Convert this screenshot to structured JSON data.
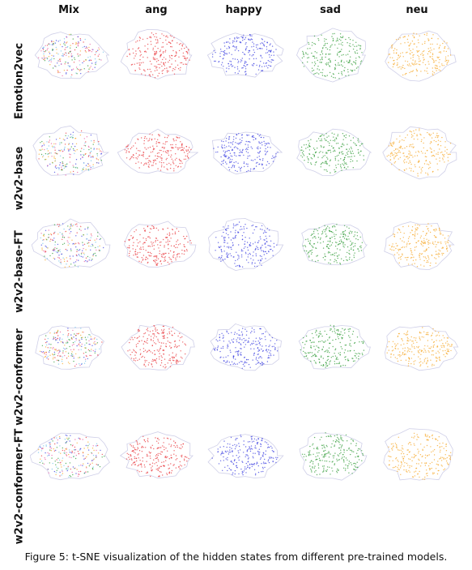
{
  "figure": {
    "columns": [
      {
        "label": "Mix",
        "color": "mix"
      },
      {
        "label": "ang",
        "color": "#e8343a"
      },
      {
        "label": "happy",
        "color": "#3b3fe0"
      },
      {
        "label": "sad",
        "color": "#2e9a34"
      },
      {
        "label": "neu",
        "color": "#f5a623"
      }
    ],
    "rows": [
      {
        "label": "Emotion2vec"
      },
      {
        "label": "w2v2-base"
      },
      {
        "label": "w2v2-base-FT"
      },
      {
        "label": "w2v2-conformer"
      },
      {
        "label": "w2v2-conformer-FT"
      }
    ],
    "mix_colors": [
      "#e8343a",
      "#3b3fe0",
      "#2e9a34",
      "#f5a623",
      "#e85fa3",
      "#6fc1e8"
    ],
    "outline_color": "#cfcfe8"
  },
  "caption": "Figure 5: t-SNE visualization of the hidden states from different pre-trained models."
}
